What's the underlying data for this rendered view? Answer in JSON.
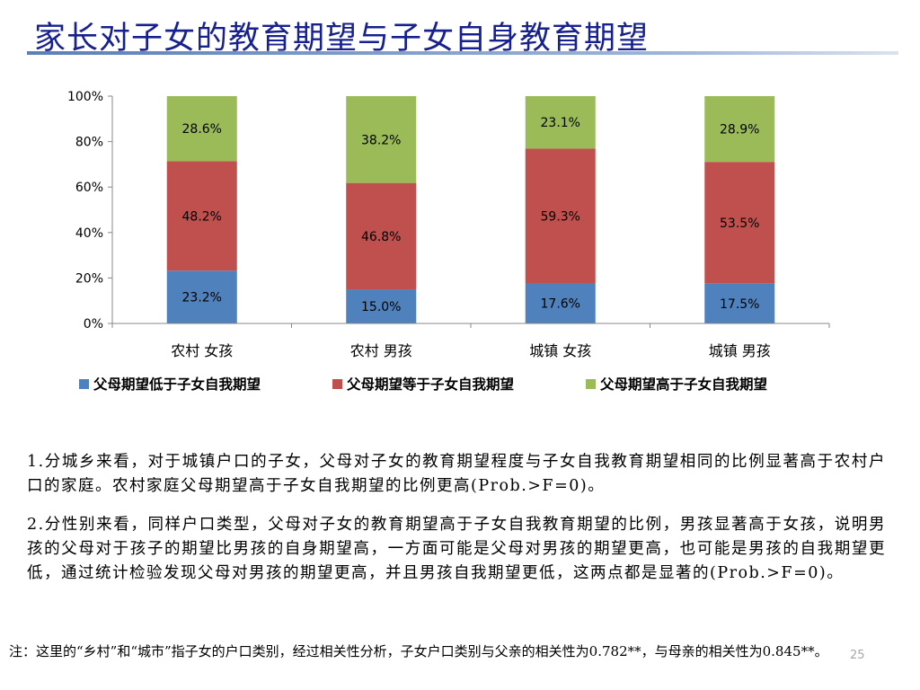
{
  "slide": {
    "title": "家长对子女的教育期望与子女自身教育期望",
    "page_number": "25",
    "paragraphs": [
      "1.分城乡来看，对于城镇户口的子女，父母对子女的教育期望程度与子女自我教育期望相同的比例显著高于农村户口的家庭。农村家庭父母期望高于子女自我期望的比例更高(Prob.>F=0)。",
      "2.分性别来看，同样户口类型，父母对子女的教育期望高于子女自我教育期望的比例，男孩显著高于女孩，说明男孩的父母对于孩子的期望比男孩的自身期望高，一方面可能是父母对男孩的期望更高，也可能是男孩的自我期望更低，通过统计检验发现父母对男孩的期望更高，并且男孩自我期望更低，这两点都是显著的(Prob.>F=0)。"
    ],
    "footnote": "注：这里的“乡村”和“城市”指子女的户口类别，经过相关性分析，子女户口类别与父亲的相关性为0.782**，与母亲的相关性为0.845**。"
  },
  "chart_data": {
    "type": "bar",
    "stacked": true,
    "percent_stacked": true,
    "categories": [
      "农村 女孩",
      "农村 男孩",
      "城镇 女孩",
      "城镇 男孩"
    ],
    "series": [
      {
        "name": "父母期望低于子女自我期望",
        "color": "#4f81bd",
        "values": [
          23.2,
          15.0,
          17.6,
          17.5
        ],
        "labels": [
          "23.2%",
          "15.0%",
          "17.6%",
          "17.5%"
        ]
      },
      {
        "name": "父母期望等于子女自我期望",
        "color": "#c0504d",
        "values": [
          48.2,
          46.8,
          59.3,
          53.5
        ],
        "labels": [
          "48.2%",
          "46.8%",
          "59.3%",
          "53.5%"
        ]
      },
      {
        "name": "父母期望高于子女自我期望",
        "color": "#9bbb59",
        "values": [
          28.6,
          38.2,
          23.1,
          28.9
        ],
        "labels": [
          "28.6%",
          "38.2%",
          "23.1%",
          "28.9%"
        ]
      }
    ],
    "yticks": [
      "0%",
      "20%",
      "40%",
      "60%",
      "80%",
      "100%"
    ],
    "ylim": [
      0,
      100
    ],
    "legend": "bottom",
    "grid": false
  }
}
